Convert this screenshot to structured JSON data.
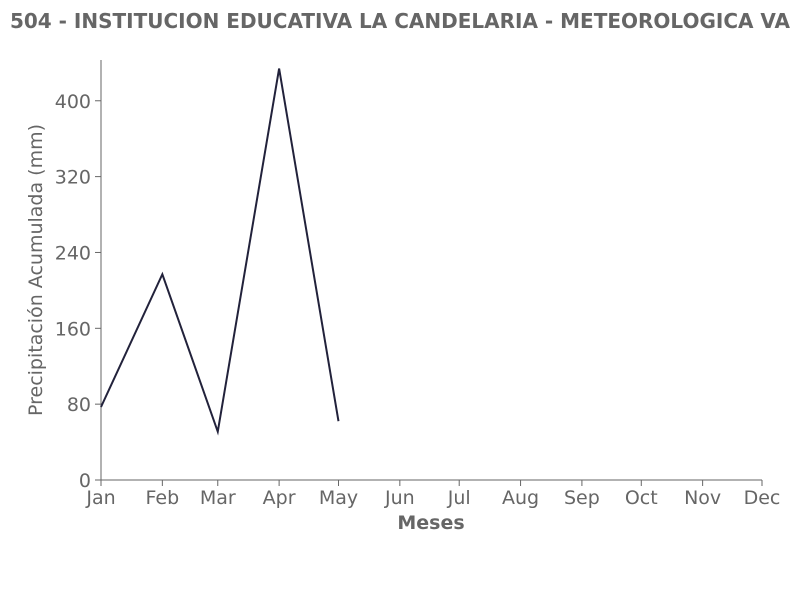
{
  "chart_data": {
    "type": "line",
    "title": "504 - INSTITUCION EDUCATIVA LA CANDELARIA - METEOROLOGICA VA",
    "xlabel": "Meses",
    "ylabel": "Precipitación Acumulada (mm)",
    "x": [
      0,
      31,
      59,
      90,
      120
    ],
    "series": [
      {
        "name": "Precipitación",
        "color": "#22223b",
        "values": [
          77,
          217,
          51,
          434,
          62
        ]
      }
    ],
    "xlim": [
      0,
      334
    ],
    "xticks": [
      {
        "value": 0,
        "label": "Jan"
      },
      {
        "value": 31,
        "label": "Feb"
      },
      {
        "value": 59,
        "label": "Mar"
      },
      {
        "value": 90,
        "label": "Apr"
      },
      {
        "value": 120,
        "label": "May"
      },
      {
        "value": 151,
        "label": "Jun"
      },
      {
        "value": 181,
        "label": "Jul"
      },
      {
        "value": 212,
        "label": "Aug"
      },
      {
        "value": 243,
        "label": "Sep"
      },
      {
        "value": 273,
        "label": "Oct"
      },
      {
        "value": 304,
        "label": "Nov"
      },
      {
        "value": 334,
        "label": "Dec"
      }
    ],
    "ylim": [
      0,
      443
    ],
    "yticks": [
      0,
      80,
      160,
      240,
      320,
      400
    ],
    "grid": false
  }
}
